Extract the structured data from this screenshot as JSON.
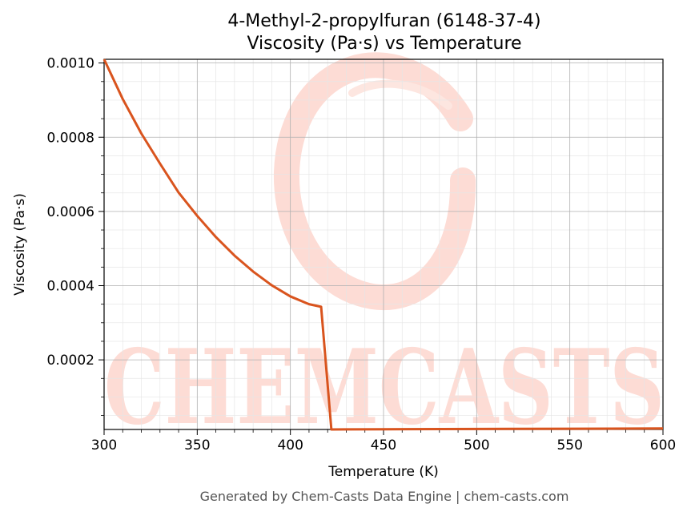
{
  "chart_data": {
    "type": "line",
    "title_line1": "4-Methyl-2-propylfuran (6148-37-4)",
    "title_line2": "Viscosity (Pa·s) vs Temperature",
    "xlabel": "Temperature (K)",
    "ylabel": "Viscosity (Pa·s)",
    "xlim": [
      300,
      600
    ],
    "ylim": [
      1.24e-05,
      0.00101
    ],
    "x_ticks": [
      300,
      350,
      400,
      450,
      500,
      550,
      600
    ],
    "x_tick_labels": [
      "300",
      "350",
      "400",
      "450",
      "500",
      "550",
      "600"
    ],
    "y_ticks": [
      0.0002,
      0.0004,
      0.0006,
      0.0008,
      0.001
    ],
    "y_tick_labels": [
      "0.0002",
      "0.0004",
      "0.0006",
      "0.0008",
      "0.0010"
    ],
    "grid": true,
    "line_color": "#d9541e",
    "series": [
      {
        "x": [
          300,
          310,
          320,
          330,
          340,
          350,
          360,
          370,
          380,
          390,
          400,
          410,
          416.5,
          422,
          430,
          450,
          500,
          550,
          600
        ],
        "y": [
          0.00101,
          0.000903,
          0.00081,
          0.000729,
          0.000651,
          0.000588,
          0.000531,
          0.000481,
          0.000438,
          0.000401,
          0.000371,
          0.00035,
          0.000343,
          1.24e-05,
          1.26e-05,
          1.3e-05,
          1.37e-05,
          1.43e-05,
          1.5e-05
        ]
      }
    ],
    "watermark": "CHEMCASTS"
  },
  "footer": "Generated by Chem-Casts Data Engine | chem-casts.com",
  "colors": {
    "line": "#d9541e",
    "watermark": "#fddcd5",
    "grid_major": "#b0b0b0",
    "grid_minor": "#e6e6e6"
  }
}
